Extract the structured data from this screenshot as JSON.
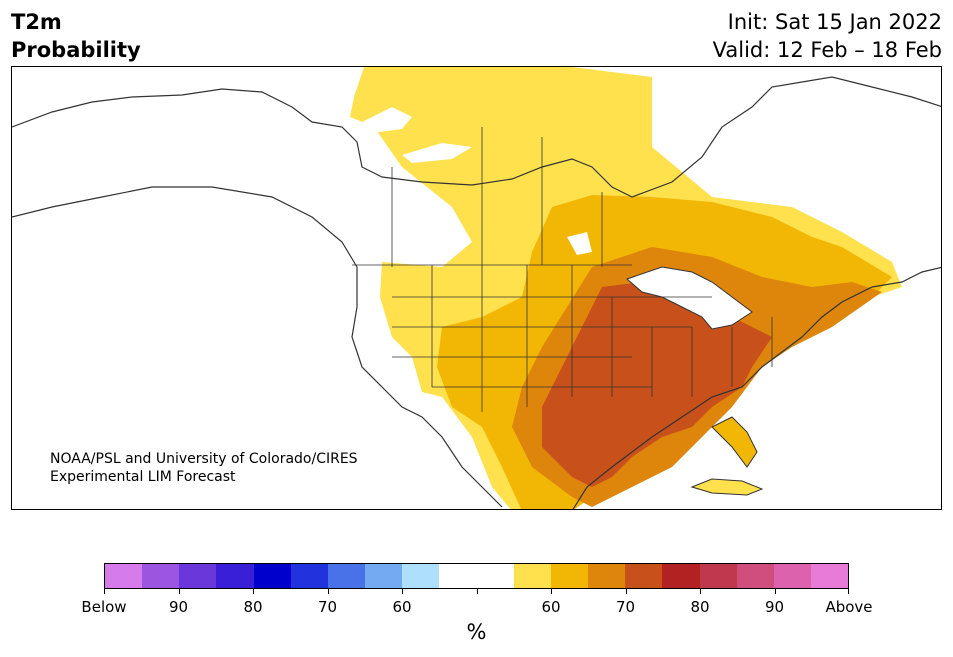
{
  "header": {
    "title_line1": "T2m",
    "title_line2": "Probability",
    "init": "Init: Sat 15 Jan 2022",
    "valid": "Valid: 12 Feb – 18 Feb"
  },
  "map": {
    "credit_line1": "NOAA/PSL and University of Colorado/CIRES",
    "credit_line2": "Experimental LIM Forecast",
    "colors": {
      "land_outline": "#333333",
      "p50_60": "#ffe14d",
      "p60_70": "#f2b705",
      "p70_80": "#de860b",
      "p80_90": "#c8501a"
    }
  },
  "colorbar": {
    "colors": [
      "#d57bea",
      "#9b55e0",
      "#6a37da",
      "#3a1fd9",
      "#0000cc",
      "#2233dd",
      "#4a72e8",
      "#73aaf2",
      "#aee0fb",
      "#ffffff",
      "#ffffff",
      "#ffe14d",
      "#f2b705",
      "#de860b",
      "#c8501a",
      "#b22222",
      "#c0384d",
      "#d04e7e",
      "#dd62ad",
      "#e87ad8"
    ],
    "labels": [
      "Below",
      "90",
      "80",
      "70",
      "60",
      "",
      "60",
      "70",
      "80",
      "90",
      "Above"
    ],
    "unit": "%"
  }
}
